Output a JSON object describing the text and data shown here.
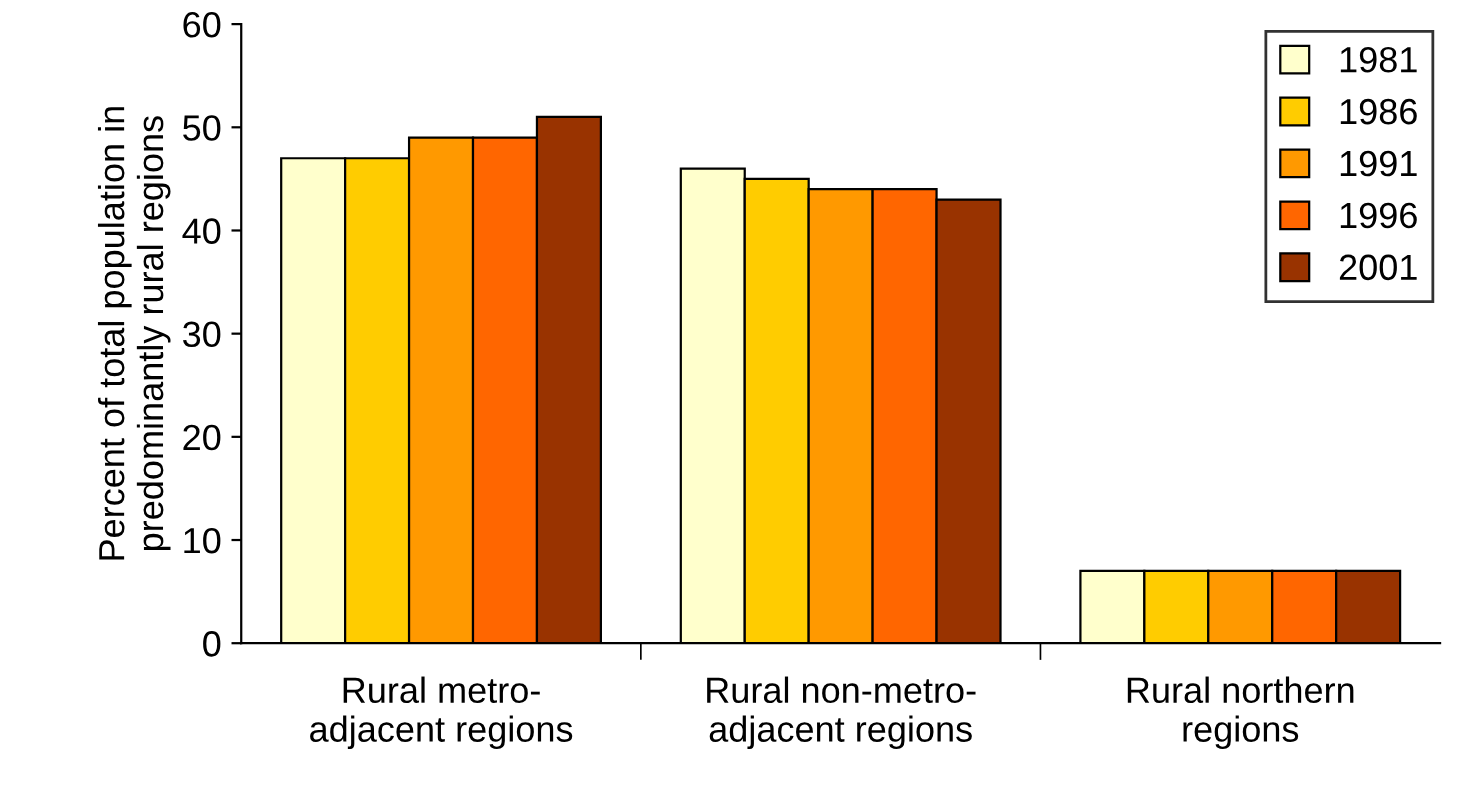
{
  "chart_data": {
    "type": "bar",
    "ylabel": "Percent of total population in\npredominantly rural regions",
    "categories": [
      "Rural metro-\nadjacent regions",
      "Rural non-metro-\nadjacent regions",
      "Rural northern\nregions"
    ],
    "series": [
      {
        "name": "1981",
        "color": "#ffffcc",
        "values": [
          47,
          46,
          7
        ]
      },
      {
        "name": "1986",
        "color": "#ffcc00",
        "values": [
          47,
          45,
          7
        ]
      },
      {
        "name": "1991",
        "color": "#ff9900",
        "values": [
          49,
          44,
          7
        ]
      },
      {
        "name": "1996",
        "color": "#ff6600",
        "values": [
          49,
          44,
          7
        ]
      },
      {
        "name": "2001",
        "color": "#993300",
        "values": [
          51,
          43,
          7
        ]
      }
    ],
    "ylim": [
      0,
      60
    ],
    "yticks": [
      0,
      10,
      20,
      30,
      40,
      50,
      60
    ],
    "grid": false,
    "legend": "top right"
  }
}
